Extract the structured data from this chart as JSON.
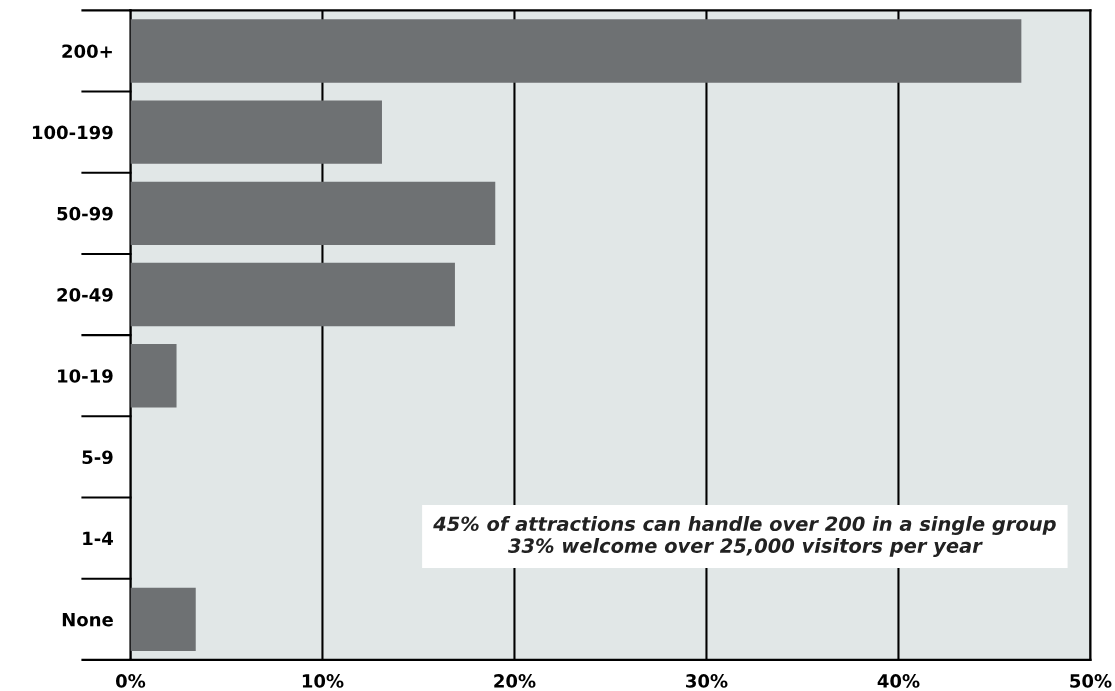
{
  "chart_data": {
    "type": "bar",
    "orientation": "horizontal",
    "categories": [
      "200+",
      "100-199",
      "50-99",
      "20-49",
      "10-19",
      "5-9",
      "1-4",
      "None"
    ],
    "values": [
      46.4,
      13.1,
      19.0,
      16.9,
      2.4,
      0,
      0,
      3.4
    ],
    "color": "#6e7173",
    "xlim": [
      0,
      50
    ],
    "xticks": [
      {
        "value": 0,
        "label": "0%"
      },
      {
        "value": 10,
        "label": "10%"
      },
      {
        "value": 20,
        "label": "20%"
      },
      {
        "value": 30,
        "label": "30%"
      },
      {
        "value": 40,
        "label": "40%"
      },
      {
        "value": 50,
        "label": "50%"
      }
    ],
    "grid": "x",
    "annotations": [
      "45% of attractions can handle over 200 in a single group\n33% welcome over 25,000 visitors per year"
    ]
  }
}
